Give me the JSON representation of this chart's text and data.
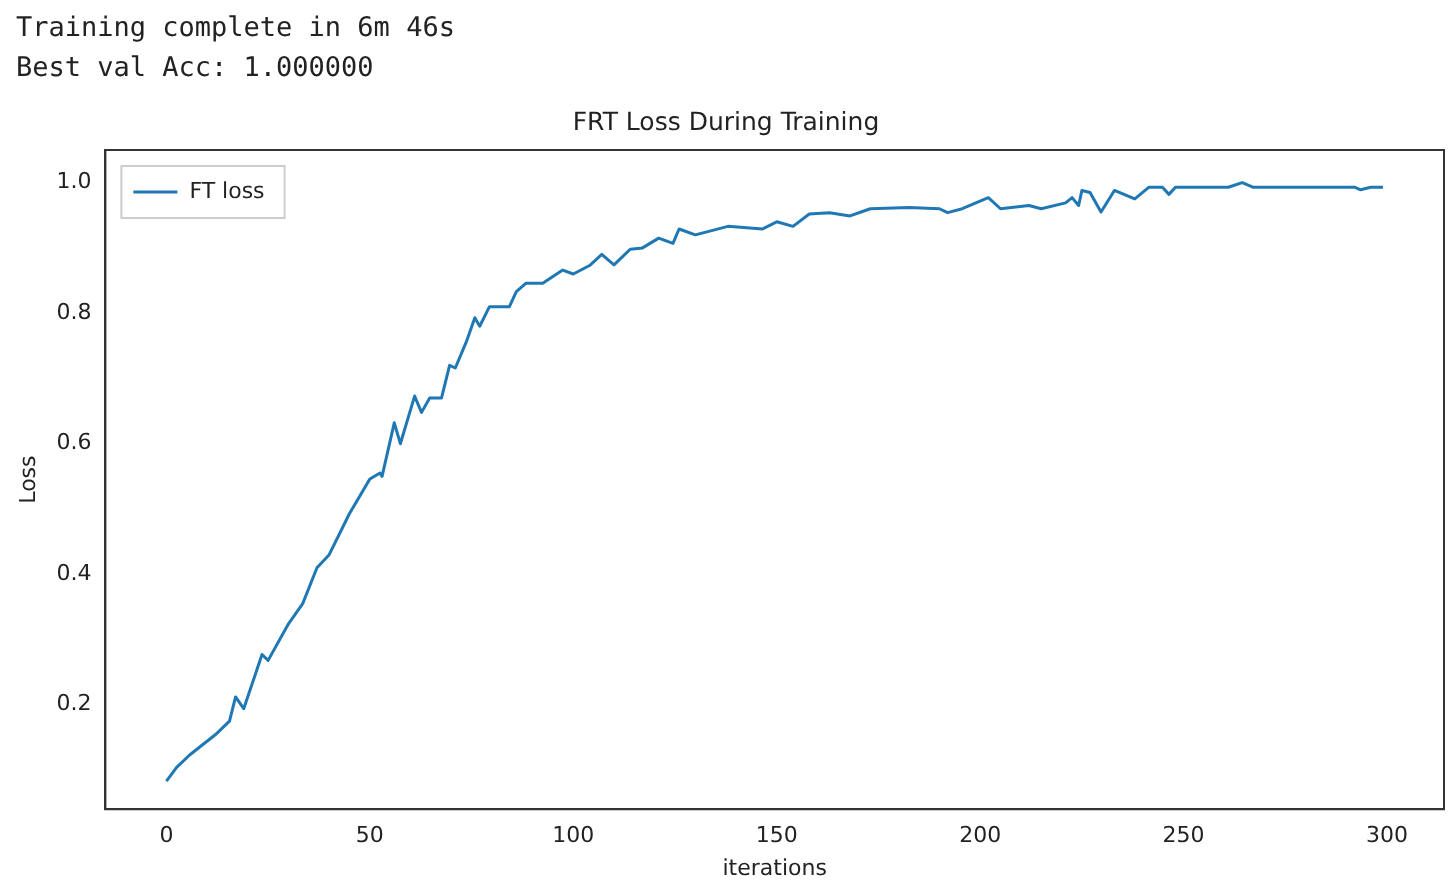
{
  "chart_data": {
    "type": "line",
    "title": "FRT Loss During Training",
    "xlabel": "iterations",
    "ylabel": "Loss",
    "annotations": [
      "Training complete in 6m 46s",
      "Best val Acc: 1.000000"
    ],
    "xlim": [
      -15,
      314
    ],
    "ylim": [
      0.04,
      1.05
    ],
    "xticks": [
      0,
      50,
      100,
      150,
      200,
      250,
      300
    ],
    "yticks": [
      0.2,
      0.4,
      0.6,
      0.8,
      {
        "value": 1,
        "label": "1.0"
      }
    ],
    "legend": "top left",
    "grid": false,
    "marker": "none",
    "line_style": "solid",
    "series": [
      {
        "name": "FT loss",
        "color": "#1f77b4",
        "x": [
          0,
          2.5,
          5.7,
          12,
          15.5,
          17,
          19,
          23.5,
          25,
          30,
          33.5,
          37,
          40,
          45,
          50,
          52.5,
          53,
          56,
          57.5,
          61,
          62.7,
          64.7,
          67.6,
          69.6,
          71,
          73.7,
          75.8,
          77,
          79.4,
          84.3,
          86,
          88.4,
          92.5,
          97.4,
          100,
          104,
          107,
          110,
          114,
          117,
          121,
          124.5,
          126,
          130,
          138,
          146.5,
          150,
          154,
          158,
          163,
          168,
          173,
          182.5,
          190,
          192,
          195.6,
          202,
          205,
          212,
          215,
          221,
          222.6,
          224.2,
          225,
          227,
          229.7,
          233,
          238,
          241.5,
          244.8,
          246.4,
          248,
          250.5,
          261,
          264.4,
          267,
          292,
          293.5,
          296,
          299
        ],
        "values": [
          0.083,
          0.104,
          0.123,
          0.154,
          0.175,
          0.212,
          0.194,
          0.277,
          0.268,
          0.324,
          0.355,
          0.41,
          0.43,
          0.493,
          0.546,
          0.555,
          0.55,
          0.632,
          0.6,
          0.673,
          0.648,
          0.67,
          0.67,
          0.72,
          0.716,
          0.756,
          0.793,
          0.78,
          0.81,
          0.81,
          0.833,
          0.846,
          0.846,
          0.866,
          0.86,
          0.873,
          0.89,
          0.874,
          0.898,
          0.9,
          0.915,
          0.907,
          0.929,
          0.92,
          0.933,
          0.929,
          0.94,
          0.933,
          0.952,
          0.954,
          0.949,
          0.96,
          0.962,
          0.96,
          0.954,
          0.96,
          0.977,
          0.96,
          0.965,
          0.96,
          0.969,
          0.977,
          0.965,
          0.988,
          0.985,
          0.955,
          0.988,
          0.975,
          0.993,
          0.993,
          0.982,
          0.993,
          0.993,
          0.993,
          1.0,
          0.993,
          0.993,
          0.989,
          0.993,
          0.993
        ]
      }
    ]
  }
}
